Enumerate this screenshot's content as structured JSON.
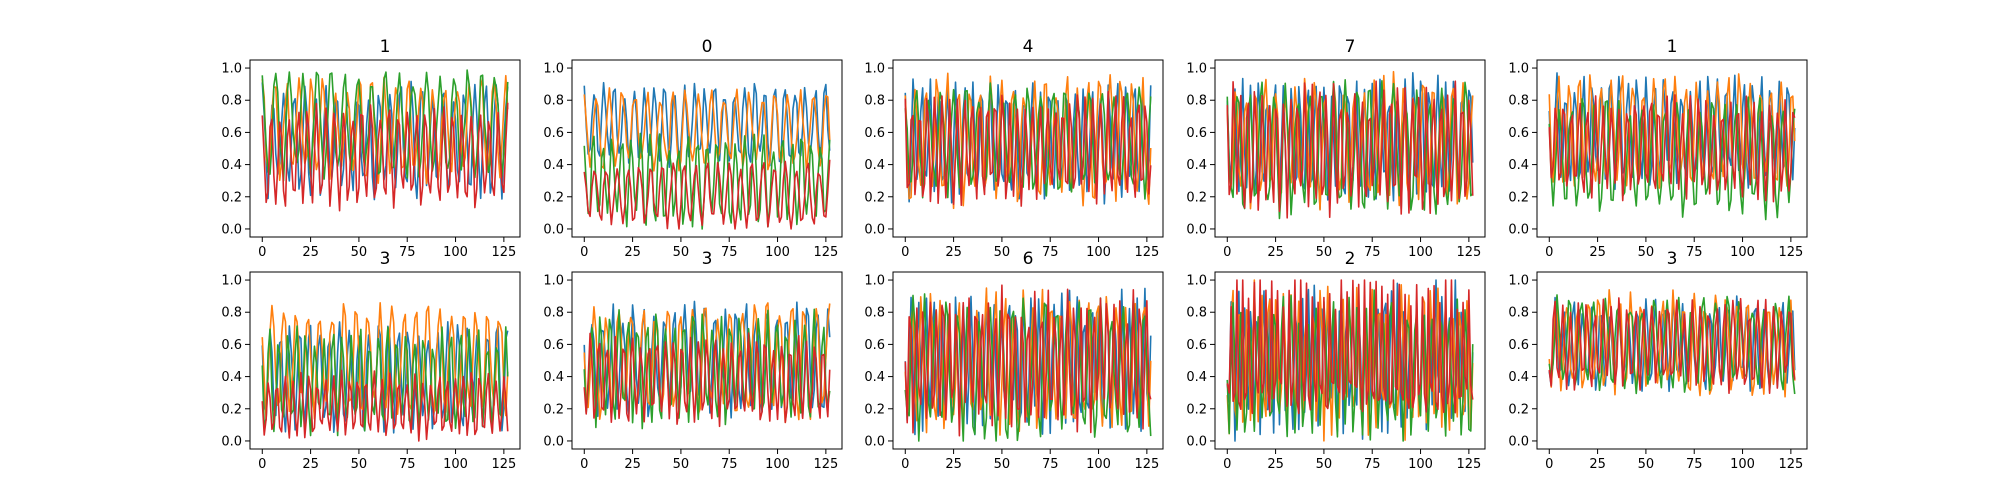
{
  "chart_data": {
    "type": "line",
    "layout_grid": {
      "rows": 2,
      "cols": 5
    },
    "series_colors": [
      "#1f77b4",
      "#ff7f0e",
      "#2ca02c",
      "#d62728"
    ],
    "x_range": [
      0,
      127
    ],
    "xlim": [
      -6.35,
      133.35
    ],
    "ylim": [
      -0.05,
      1.05
    ],
    "x_ticks": [
      0,
      25,
      50,
      75,
      100,
      125
    ],
    "y_ticks": [
      0.0,
      0.2,
      0.4,
      0.6,
      0.8,
      1.0
    ],
    "x_tick_labels": [
      "0",
      "25",
      "50",
      "75",
      "100",
      "125"
    ],
    "y_tick_labels": [
      "0.0",
      "0.2",
      "0.4",
      "0.6",
      "0.8",
      "1.0"
    ],
    "grid": false,
    "panels": [
      {
        "title": "1",
        "series": [
          {
            "base": 0.55,
            "amp": 0.3,
            "period": 5.5
          },
          {
            "base": 0.62,
            "amp": 0.28,
            "period": 6.3
          },
          {
            "base": 0.65,
            "amp": 0.3,
            "period": 7.1
          },
          {
            "base": 0.45,
            "amp": 0.28,
            "period": 4.7
          }
        ]
      },
      {
        "title": "0",
        "series": [
          {
            "base": 0.65,
            "amp": 0.22,
            "period": 5.2
          },
          {
            "base": 0.62,
            "amp": 0.22,
            "period": 6.6
          },
          {
            "base": 0.3,
            "amp": 0.25,
            "period": 4.9
          },
          {
            "base": 0.22,
            "amp": 0.18,
            "period": 5.8
          }
        ]
      },
      {
        "title": "4",
        "series": [
          {
            "base": 0.55,
            "amp": 0.32,
            "period": 4.4
          },
          {
            "base": 0.55,
            "amp": 0.35,
            "period": 5.6
          },
          {
            "base": 0.55,
            "amp": 0.3,
            "period": 6.4
          },
          {
            "base": 0.5,
            "amp": 0.3,
            "period": 3.9
          }
        ]
      },
      {
        "title": "7",
        "series": [
          {
            "base": 0.55,
            "amp": 0.35,
            "period": 4.2
          },
          {
            "base": 0.55,
            "amp": 0.35,
            "period": 5.1
          },
          {
            "base": 0.5,
            "amp": 0.35,
            "period": 6.2
          },
          {
            "base": 0.5,
            "amp": 0.35,
            "period": 3.7
          }
        ]
      },
      {
        "title": "1",
        "series": [
          {
            "base": 0.6,
            "amp": 0.3,
            "period": 4.6
          },
          {
            "base": 0.6,
            "amp": 0.3,
            "period": 5.5
          },
          {
            "base": 0.45,
            "amp": 0.32,
            "period": 6.1
          },
          {
            "base": 0.5,
            "amp": 0.28,
            "period": 4.1
          }
        ]
      },
      {
        "title": "3",
        "series": [
          {
            "base": 0.4,
            "amp": 0.3,
            "period": 5.1
          },
          {
            "base": 0.5,
            "amp": 0.3,
            "period": 6.2
          },
          {
            "base": 0.38,
            "amp": 0.28,
            "period": 4.7
          },
          {
            "base": 0.22,
            "amp": 0.18,
            "period": 4.2
          }
        ]
      },
      {
        "title": "3",
        "series": [
          {
            "base": 0.5,
            "amp": 0.3,
            "period": 5.3
          },
          {
            "base": 0.5,
            "amp": 0.32,
            "period": 6.4
          },
          {
            "base": 0.45,
            "amp": 0.3,
            "period": 4.8
          },
          {
            "base": 0.38,
            "amp": 0.25,
            "period": 4.3
          }
        ]
      },
      {
        "title": "6",
        "series": [
          {
            "base": 0.5,
            "amp": 0.38,
            "period": 3.9
          },
          {
            "base": 0.5,
            "amp": 0.38,
            "period": 4.8
          },
          {
            "base": 0.45,
            "amp": 0.38,
            "period": 5.7
          },
          {
            "base": 0.5,
            "amp": 0.38,
            "period": 3.4
          }
        ]
      },
      {
        "title": "2",
        "series": [
          {
            "base": 0.5,
            "amp": 0.42,
            "period": 3.3
          },
          {
            "base": 0.5,
            "amp": 0.42,
            "period": 3.8
          },
          {
            "base": 0.45,
            "amp": 0.4,
            "period": 4.3
          },
          {
            "base": 0.5,
            "amp": 0.42,
            "period": 3.0
          }
        ]
      },
      {
        "title": "3",
        "series": [
          {
            "base": 0.6,
            "amp": 0.25,
            "period": 4.7
          },
          {
            "base": 0.6,
            "amp": 0.28,
            "period": 5.5
          },
          {
            "base": 0.6,
            "amp": 0.25,
            "period": 6.3
          },
          {
            "base": 0.6,
            "amp": 0.25,
            "period": 4.2
          }
        ]
      }
    ]
  }
}
